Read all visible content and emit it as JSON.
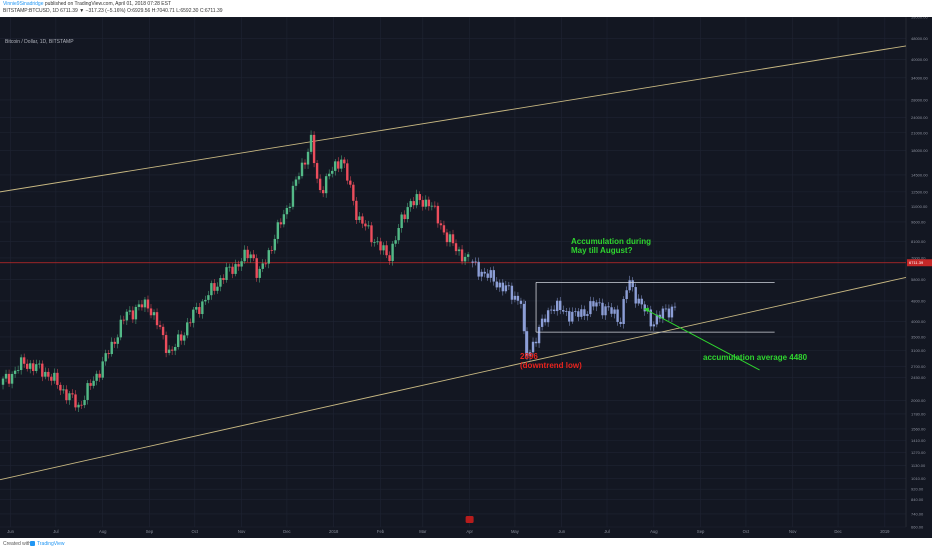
{
  "header": {
    "author": "Vinnie9Sinadridge",
    "published": "published on TradingView.com, April 01, 2018 07:28 EST",
    "symbol_line": "BITSTAMP:BTCUSD, 1D 6711.39 ▼ −317.23 (−5.16%) O:6929.56 H:7040.71 L:6592.30 C:6711.39"
  },
  "pair_label": "Bitcoin / Dollar, 1D, BITSTAMP",
  "footer": {
    "created_with": "Created with",
    "brand": "TradingView"
  },
  "annotations": {
    "accumulation_1": "Accumulation during",
    "accumulation_2": "May till August?",
    "low_1": "2896",
    "low_2": "(downtrend low)",
    "average": "accumulation average 4480"
  },
  "colors": {
    "background": "#131722",
    "up_candle": "#53b987",
    "down_candle": "#eb4d5c",
    "projection": "#8c9ed6",
    "trend_line": "#c8b882",
    "box_line": "#d0d3db",
    "arrow": "#2fd52f",
    "price_line": "#c62828"
  },
  "chart_data": {
    "type": "candlestick",
    "title": "Bitcoin / Dollar, 1D, BITSTAMP",
    "y_scale": "log",
    "ylim": [
      660,
      58000
    ],
    "xlim": [
      "2017-05-25",
      "2019-01-15"
    ],
    "y_ticks": [
      "58000.00",
      "48000.00",
      "40000.00",
      "34000.00",
      "28000.00",
      "24000.00",
      "21000.00",
      "18000.00",
      "14500.00",
      "12500.00",
      "11000.00",
      "9600.00",
      "8100.00",
      "7000.00",
      "5800.00",
      "4800.00",
      "4000.00",
      "3500.00",
      "3100.00",
      "2700.00",
      "2450.00",
      "2000.00",
      "1780.00",
      "1560.00",
      "1410.00",
      "1270.00",
      "1130.00",
      "1010.00",
      "920.00",
      "840.00",
      "740.00",
      "660.00"
    ],
    "x_ticks": [
      "Jun",
      "Jul",
      "Aug",
      "Sep",
      "Oct",
      "Nov",
      "Dec",
      "2018",
      "Feb",
      "Mar",
      "Apr",
      "May",
      "Jun",
      "Jul",
      "Aug",
      "Sep",
      "Oct",
      "Nov",
      "Dec",
      "2019"
    ],
    "x_tick_dates": [
      "2017-06-01",
      "2017-07-01",
      "2017-08-01",
      "2017-09-01",
      "2017-10-01",
      "2017-11-01",
      "2017-12-01",
      "2018-01-01",
      "2018-02-01",
      "2018-03-01",
      "2018-04-01",
      "2018-05-01",
      "2018-06-01",
      "2018-07-01",
      "2018-08-01",
      "2018-09-01",
      "2018-10-01",
      "2018-11-01",
      "2018-12-01",
      "2019-01-01"
    ],
    "current_price": 6711.39,
    "price_path": [
      [
        "2017-05-25",
        2300
      ],
      [
        "2017-06-10",
        2800
      ],
      [
        "2017-06-25",
        2550
      ],
      [
        "2017-07-16",
        1900
      ],
      [
        "2017-08-01",
        2750
      ],
      [
        "2017-08-17",
        4300
      ],
      [
        "2017-08-31",
        4700
      ],
      [
        "2017-09-15",
        3000
      ],
      [
        "2017-10-01",
        4350
      ],
      [
        "2017-10-20",
        6000
      ],
      [
        "2017-11-08",
        7400
      ],
      [
        "2017-11-12",
        5850
      ],
      [
        "2017-12-01",
        10900
      ],
      [
        "2017-12-17",
        19500
      ],
      [
        "2017-12-22",
        12500
      ],
      [
        "2018-01-06",
        17000
      ],
      [
        "2018-01-17",
        10000
      ],
      [
        "2018-02-06",
        7000
      ],
      [
        "2018-02-20",
        11500
      ],
      [
        "2018-03-05",
        11500
      ],
      [
        "2018-03-18",
        8200
      ],
      [
        "2018-04-01",
        6711
      ]
    ],
    "projection_path": [
      [
        "2018-04-01",
        6711
      ],
      [
        "2018-04-20",
        5600
      ],
      [
        "2018-05-05",
        4800
      ],
      [
        "2018-05-08",
        2896
      ],
      [
        "2018-05-25",
        4600
      ],
      [
        "2018-06-10",
        4200
      ],
      [
        "2018-06-25",
        4700
      ],
      [
        "2018-07-10",
        4100
      ],
      [
        "2018-07-15",
        5700
      ],
      [
        "2018-07-30",
        4000
      ],
      [
        "2018-08-15",
        4600
      ]
    ],
    "trend_lines": [
      {
        "from": [
          "2017-05-25",
          12500
        ],
        "to": [
          "2019-01-15",
          45000
        ]
      },
      {
        "from": [
          "2017-05-25",
          1000
        ],
        "to": [
          "2019-01-15",
          5900
        ]
      }
    ],
    "accumulation_box": {
      "from": "2018-05-15",
      "to": "2018-10-20",
      "top": 5650,
      "bottom": 3650
    },
    "downtrend_low": 2896,
    "accumulation_average": 4480
  }
}
